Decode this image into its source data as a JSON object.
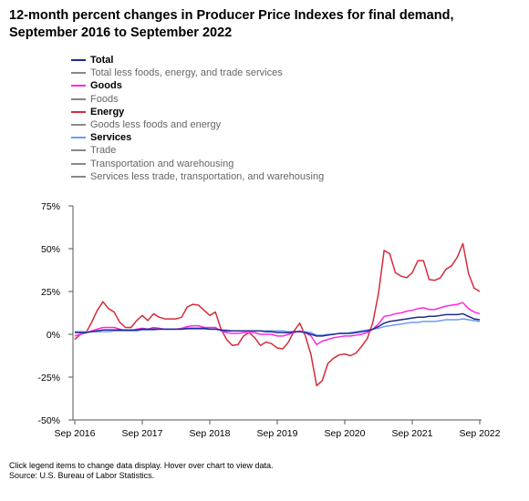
{
  "title_line1": "12-month percent changes in Producer Price Indexes for final demand,",
  "title_line2": "September 2016 to September 2022",
  "legend": [
    {
      "label": "Total",
      "color": "#1f2a8c",
      "active": true
    },
    {
      "label": "Total less foods, energy, and trade services",
      "color": "#888888",
      "active": false
    },
    {
      "label": "Goods",
      "color": "#ff27e3",
      "active": true
    },
    {
      "label": "Foods",
      "color": "#888888",
      "active": false
    },
    {
      "label": "Energy",
      "color": "#d62b3a",
      "active": true
    },
    {
      "label": "Goods less foods and energy",
      "color": "#888888",
      "active": false
    },
    {
      "label": "Services",
      "color": "#6b9ef2",
      "active": true
    },
    {
      "label": "Trade",
      "color": "#888888",
      "active": false
    },
    {
      "label": "Transportation and warehousing",
      "color": "#888888",
      "active": false
    },
    {
      "label": "Services less trade, transportation, and warehousing",
      "color": "#888888",
      "active": false
    }
  ],
  "footnote_line1": "Click legend items to change data display. Hover over chart to view data.",
  "footnote_line2": "Source: U.S. Bureau of Labor Statistics.",
  "chart_data": {
    "type": "line",
    "title": "12-month percent changes in Producer Price Indexes for final demand, September 2016 to September 2022",
    "xlabel": "",
    "ylabel": "",
    "ylim": [
      -50,
      75
    ],
    "yticks": [
      75,
      50,
      25,
      0,
      -25,
      -50
    ],
    "ytick_labels": [
      "75%",
      "50%",
      "25%",
      "0%",
      "-25%",
      "-50%"
    ],
    "xtick_labels": [
      "Sep 2016",
      "Sep 2017",
      "Sep 2018",
      "Sep 2019",
      "Sep 2020",
      "Sep 2021",
      "Sep 2022"
    ],
    "x_start": "Sep 2016",
    "x_end": "Sep 2022",
    "grid": false,
    "legend_position": "top-left",
    "series": [
      {
        "name": "Energy",
        "color": "#d62b3a",
        "values": [
          -3,
          0,
          1,
          7,
          14,
          19,
          15,
          13,
          7,
          4,
          4,
          8,
          11,
          8,
          12,
          10,
          9,
          9,
          9,
          10,
          16,
          17.5,
          17,
          14,
          11,
          13,
          3,
          -3,
          -6.5,
          -6,
          -1,
          1,
          -2,
          -6.5,
          -4.5,
          -5.5,
          -8,
          -8.5,
          -4.5,
          2,
          6.5,
          -1,
          -12,
          -30,
          -27,
          -17,
          -14,
          -12,
          -11.5,
          -12.5,
          -11,
          -7,
          -2.5,
          7,
          24,
          49,
          47,
          36,
          34,
          33,
          36,
          43,
          43,
          32,
          31.5,
          33,
          38,
          40,
          45,
          53,
          35.5,
          27,
          25
        ]
      },
      {
        "name": "Goods",
        "color": "#ff27e3",
        "values": [
          -1,
          0,
          1,
          2,
          3,
          4,
          4,
          4,
          3,
          2,
          2,
          3,
          3.5,
          3,
          4,
          3.5,
          3,
          3,
          3,
          3.5,
          4.5,
          5,
          5,
          4,
          4,
          4,
          2,
          1,
          0.5,
          0.5,
          1,
          1,
          1,
          0,
          0,
          0,
          -1,
          -1,
          0,
          1,
          2,
          1,
          -1,
          -6,
          -4,
          -3,
          -2,
          -1.5,
          -1,
          -1,
          -0.5,
          0,
          1,
          3,
          6,
          10.5,
          11,
          12,
          12.5,
          13.5,
          14,
          15,
          15.5,
          14.5,
          14.5,
          15.5,
          16.5,
          17,
          17.5,
          18.5,
          15,
          13,
          12
        ]
      },
      {
        "name": "Services",
        "color": "#6b9ef2",
        "values": [
          1.5,
          1.5,
          1.5,
          1.5,
          1.5,
          1.5,
          1.5,
          2,
          2,
          2,
          2,
          2,
          2.5,
          2.5,
          2.5,
          3,
          3,
          3,
          3,
          3,
          3,
          3,
          3,
          3,
          3,
          3,
          2.5,
          2.5,
          2,
          2,
          2,
          2,
          2,
          2,
          2,
          2,
          2,
          2,
          1.5,
          1.5,
          1.5,
          1.5,
          1,
          -0.5,
          -0.5,
          0,
          0,
          0.5,
          0.5,
          1,
          1.5,
          2,
          2.5,
          3,
          3.5,
          4.5,
          5,
          5.5,
          6,
          6.5,
          7,
          7,
          7.5,
          7.5,
          7.5,
          8,
          8.5,
          8.5,
          8.5,
          9,
          8.5,
          8,
          7.5
        ]
      },
      {
        "name": "Total",
        "color": "#1f2a8c",
        "values": [
          1,
          1,
          1,
          1.5,
          2,
          2.5,
          2.5,
          2.5,
          2.5,
          2.5,
          2.5,
          2.5,
          3,
          3,
          3,
          3,
          3,
          3,
          3,
          3,
          3.5,
          3.5,
          3.5,
          3.5,
          3,
          3,
          2.5,
          2,
          2,
          2,
          2,
          2,
          2,
          2,
          1.5,
          1.5,
          1,
          1,
          1,
          1.5,
          1.5,
          1,
          0,
          -1,
          -1,
          -0.5,
          0,
          0.5,
          0.5,
          0.5,
          1,
          1.5,
          2,
          3,
          4.5,
          6.5,
          7.5,
          8,
          8.5,
          9,
          9.5,
          10,
          10,
          10.5,
          10.5,
          11,
          11.5,
          11.5,
          11.5,
          12,
          10.5,
          9,
          8.5
        ]
      }
    ]
  }
}
